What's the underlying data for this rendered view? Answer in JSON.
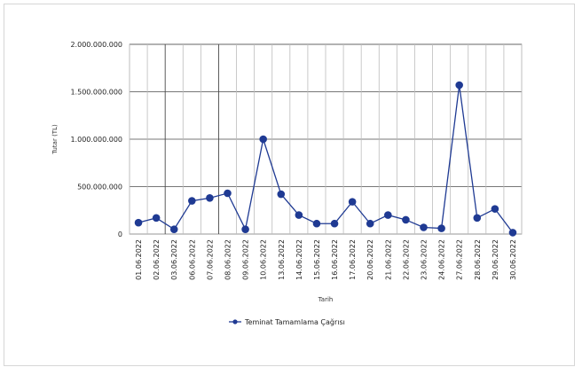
{
  "chart_data": {
    "type": "line",
    "title": "",
    "xlabel": "Tarih",
    "ylabel": "Tutar (TL)",
    "ylim": [
      0,
      2000000000
    ],
    "y_ticks": [
      0,
      500000000,
      1000000000,
      1500000000,
      2000000000
    ],
    "y_tick_labels": [
      "0",
      "500.000.000",
      "1.000.000.000",
      "1.500.000.000",
      "2.000.000.000"
    ],
    "grid": true,
    "legend_position": "bottom",
    "categories": [
      "01.06.2022",
      "02.06.2022",
      "03.06.2022",
      "06.06.2022",
      "07.06.2022",
      "08.06.2022",
      "09.06.2022",
      "10.06.2022",
      "13.06.2022",
      "14.06.2022",
      "15.06.2022",
      "16.06.2022",
      "17.06.2022",
      "20.06.2022",
      "21.06.2022",
      "22.06.2022",
      "23.06.2022",
      "24.06.2022",
      "27.06.2022",
      "28.06.2022",
      "29.06.2022",
      "30.06.2022"
    ],
    "series": [
      {
        "name": "Teminat Tamamlama Çağrısı",
        "color": "#1f3a93",
        "values": [
          120000000,
          170000000,
          50000000,
          350000000,
          380000000,
          430000000,
          50000000,
          1000000000,
          420000000,
          200000000,
          110000000,
          110000000,
          340000000,
          110000000,
          200000000,
          150000000,
          70000000,
          60000000,
          1570000000,
          170000000,
          265000000,
          15000000
        ]
      }
    ]
  }
}
